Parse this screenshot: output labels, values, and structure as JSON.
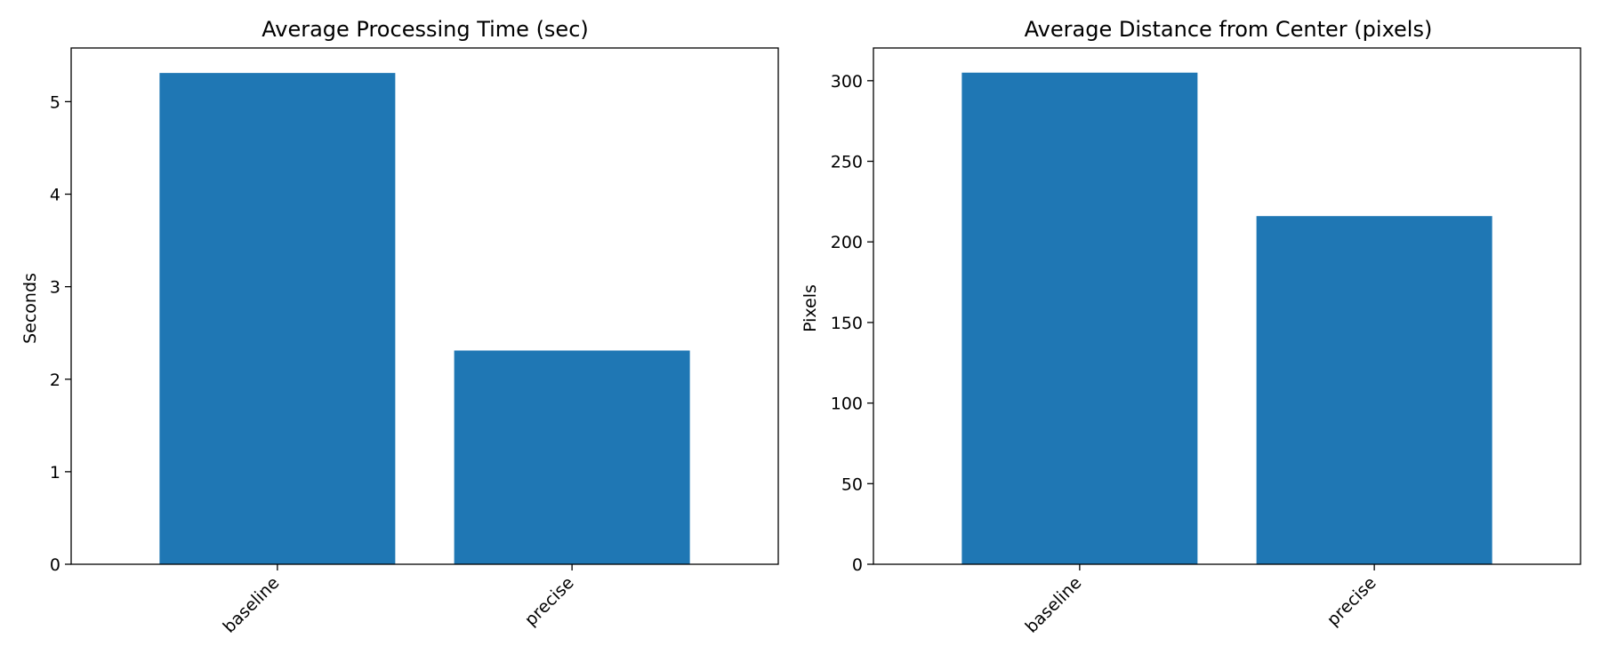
{
  "chart_data": [
    {
      "type": "bar",
      "title": "Average Processing Time (sec)",
      "xlabel": "",
      "ylabel": "Seconds",
      "categories": [
        "baseline",
        "precise"
      ],
      "values": [
        5.31,
        2.31
      ],
      "ylim": [
        0,
        5.58
      ],
      "yticks": [
        0,
        1,
        2,
        3,
        4,
        5
      ],
      "bar_color": "#1f77b4",
      "grid": false,
      "legend": "none"
    },
    {
      "type": "bar",
      "title": "Average Distance from Center (pixels)",
      "xlabel": "",
      "ylabel": "Pixels",
      "categories": [
        "baseline",
        "precise"
      ],
      "values": [
        305,
        216
      ],
      "ylim": [
        0,
        320.3
      ],
      "yticks": [
        0,
        50,
        100,
        150,
        200,
        250,
        300
      ],
      "bar_color": "#1f77b4",
      "grid": false,
      "legend": "none"
    }
  ]
}
